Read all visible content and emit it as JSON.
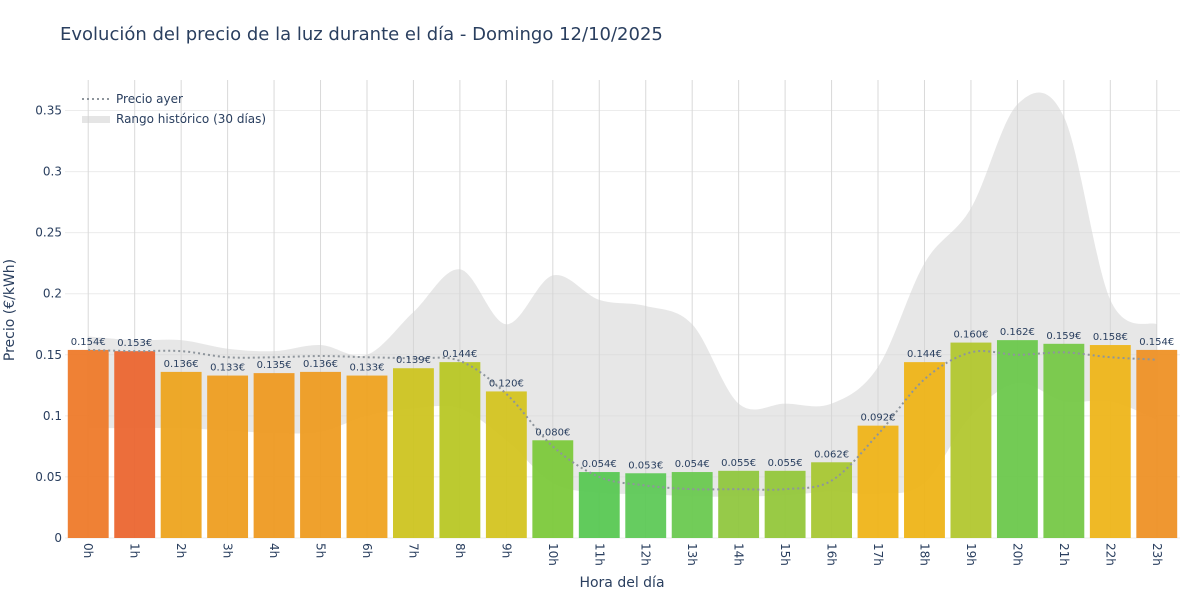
{
  "chart_data": {
    "type": "bar",
    "title": "Evolución del precio de la luz durante el día - Domingo 12/10/2025",
    "xlabel": "Hora del día",
    "ylabel": "Precio (€/kWh)",
    "ylim": [
      0,
      0.375
    ],
    "yticks": [
      0,
      0.05,
      0.1,
      0.15,
      0.2,
      0.25,
      0.3,
      0.35
    ],
    "ytick_labels": [
      "0",
      "0.05",
      "0.1",
      "0.15",
      "0.2",
      "0.25",
      "0.3",
      "0.35"
    ],
    "categories": [
      "0h",
      "1h",
      "2h",
      "3h",
      "4h",
      "5h",
      "6h",
      "7h",
      "8h",
      "9h",
      "10h",
      "11h",
      "12h",
      "13h",
      "14h",
      "15h",
      "16h",
      "17h",
      "18h",
      "19h",
      "20h",
      "21h",
      "22h",
      "23h"
    ],
    "values": [
      0.154,
      0.153,
      0.136,
      0.133,
      0.135,
      0.136,
      0.133,
      0.139,
      0.144,
      0.12,
      0.08,
      0.054,
      0.053,
      0.054,
      0.055,
      0.055,
      0.062,
      0.092,
      0.144,
      0.16,
      0.162,
      0.159,
      0.158,
      0.154
    ],
    "value_labels": [
      "0.154€",
      "0.153€",
      "0.136€",
      "0.133€",
      "0.135€",
      "0.136€",
      "0.133€",
      "0.139€",
      "0.144€",
      "0.120€",
      "0.080€",
      "0.054€",
      "0.053€",
      "0.054€",
      "0.055€",
      "0.055€",
      "0.062€",
      "0.092€",
      "0.144€",
      "0.160€",
      "0.162€",
      "0.159€",
      "0.158€",
      "0.154€"
    ],
    "bar_colors": [
      "#ee7a2a",
      "#eb6630",
      "#eda41f",
      "#ee9e21",
      "#ee9a22",
      "#ee9c22",
      "#efa321",
      "#cdc421",
      "#b8c725",
      "#d4c421",
      "#7cc93b",
      "#58c853",
      "#5ec957",
      "#6ac950",
      "#90c73f",
      "#94c73b",
      "#a8c733",
      "#efb419",
      "#eeb418",
      "#b2c72f",
      "#6cc84c",
      "#76c847",
      "#eeb51a",
      "#ee9126"
    ],
    "series": [
      {
        "name": "Precio ayer",
        "type": "line",
        "style": "dotted",
        "color": "#8e959c",
        "values": [
          0.154,
          0.153,
          0.153,
          0.148,
          0.148,
          0.149,
          0.148,
          0.147,
          0.145,
          0.118,
          0.075,
          0.05,
          0.043,
          0.04,
          0.04,
          0.04,
          0.047,
          0.085,
          0.13,
          0.152,
          0.15,
          0.152,
          0.148,
          0.146
        ]
      },
      {
        "name": "Rango histórico (30 días)",
        "type": "band",
        "color": "#d3d3d3",
        "upper": [
          0.165,
          0.162,
          0.162,
          0.155,
          0.153,
          0.158,
          0.15,
          0.185,
          0.22,
          0.175,
          0.215,
          0.195,
          0.19,
          0.175,
          0.11,
          0.11,
          0.11,
          0.14,
          0.225,
          0.27,
          0.355,
          0.345,
          0.195,
          0.175
        ],
        "lower": [
          0.09,
          0.09,
          0.09,
          0.088,
          0.086,
          0.087,
          0.1,
          0.106,
          0.106,
          0.08,
          0.045,
          0.037,
          0.036,
          0.034,
          0.034,
          0.035,
          0.038,
          0.036,
          0.045,
          0.1,
          0.127,
          0.112,
          0.112,
          0.097
        ]
      }
    ],
    "legend": {
      "position": "top-left",
      "items": [
        {
          "name": "Precio ayer",
          "symbol": "dotted-line"
        },
        {
          "name": "Rango histórico (30 días)",
          "symbol": "band"
        }
      ]
    },
    "grid": true
  }
}
